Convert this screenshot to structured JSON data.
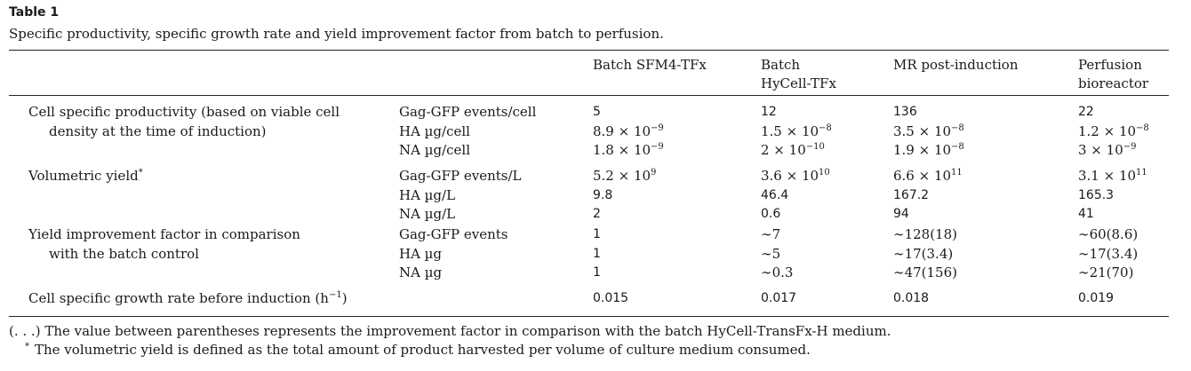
{
  "table": {
    "label": "Table 1",
    "caption": "Specific productivity, specific growth rate and yield improvement factor from batch to perfusion.",
    "headers": [
      [
        "Batch SFM4-TFx"
      ],
      [
        "Batch",
        "HyCell-TFx"
      ],
      [
        "MR post-induction"
      ],
      [
        "Perfusion",
        "bioreactor"
      ]
    ],
    "groups": [
      {
        "label_lines": [
          "Cell specific productivity (based on viable cell",
          "density at the time of induction)"
        ],
        "label_sup": "",
        "rows": [
          {
            "unit": "Gag-GFP events/cell",
            "values": [
              {
                "m": "5",
                "e": ""
              },
              {
                "m": "12",
                "e": ""
              },
              {
                "m": "136",
                "e": ""
              },
              {
                "m": "22",
                "e": ""
              }
            ]
          },
          {
            "unit": "HA µg/cell",
            "values": [
              {
                "m": "8.9 × 10",
                "e": "−9"
              },
              {
                "m": "1.5 × 10",
                "e": "−8"
              },
              {
                "m": "3.5 × 10",
                "e": "−8"
              },
              {
                "m": "1.2 × 10",
                "e": "−8"
              }
            ]
          },
          {
            "unit": "NA µg/cell",
            "values": [
              {
                "m": "1.8 × 10",
                "e": "−9"
              },
              {
                "m": "2 × 10",
                "e": "−10"
              },
              {
                "m": "1.9 × 10",
                "e": "−8"
              },
              {
                "m": "3 × 10",
                "e": "−9"
              }
            ]
          }
        ]
      },
      {
        "label_lines": [
          "Volumetric yield"
        ],
        "label_sup": "*",
        "rows": [
          {
            "unit": "Gag-GFP events/L",
            "values": [
              {
                "m": "5.2 × 10",
                "e": "9"
              },
              {
                "m": "3.6 × 10",
                "e": "10"
              },
              {
                "m": "6.6 × 10",
                "e": "11"
              },
              {
                "m": "3.1 × 10",
                "e": "11"
              }
            ]
          },
          {
            "unit": "HA µg/L",
            "values": [
              {
                "m": "9.8",
                "e": ""
              },
              {
                "m": "46.4",
                "e": ""
              },
              {
                "m": "167.2",
                "e": ""
              },
              {
                "m": "165.3",
                "e": ""
              }
            ]
          },
          {
            "unit": "NA µg/L",
            "values": [
              {
                "m": "2",
                "e": ""
              },
              {
                "m": "0.6",
                "e": ""
              },
              {
                "m": "94",
                "e": ""
              },
              {
                "m": "41",
                "e": ""
              }
            ]
          }
        ]
      },
      {
        "label_lines": [
          "Yield improvement factor in comparison",
          "with the batch control"
        ],
        "label_sup": "",
        "rows": [
          {
            "unit": "Gag-GFP events",
            "values": [
              {
                "m": "1",
                "e": ""
              },
              {
                "m": "∼7",
                "e": ""
              },
              {
                "m": "∼128(18)",
                "e": ""
              },
              {
                "m": "∼60(8.6)",
                "e": ""
              }
            ]
          },
          {
            "unit": "HA µg",
            "values": [
              {
                "m": "1",
                "e": ""
              },
              {
                "m": "∼5",
                "e": ""
              },
              {
                "m": "∼17(3.4)",
                "e": ""
              },
              {
                "m": "∼17(3.4)",
                "e": ""
              }
            ]
          },
          {
            "unit": "NA µg",
            "values": [
              {
                "m": "1",
                "e": ""
              },
              {
                "m": "∼0.3",
                "e": ""
              },
              {
                "m": "∼47(156)",
                "e": ""
              },
              {
                "m": "∼21(70)",
                "e": ""
              }
            ]
          }
        ]
      },
      {
        "label_lines": [
          "Cell specific growth rate before induction (h"
        ],
        "label_sup": "−1",
        "label_after": ")",
        "rows": [
          {
            "unit": "",
            "values": [
              {
                "m": "0.015",
                "e": ""
              },
              {
                "m": "0.017",
                "e": ""
              },
              {
                "m": "0.018",
                "e": ""
              },
              {
                "m": "0.019",
                "e": ""
              }
            ]
          }
        ]
      }
    ],
    "footnotes": [
      {
        "mark": "",
        "text": "(. . .) The value between parentheses represents the improvement factor in comparison with the batch HyCell-TransFx-H medium."
      },
      {
        "mark": "*",
        "text": "The volumetric yield is defined as the total amount of product harvested per volume of culture medium consumed."
      }
    ]
  }
}
